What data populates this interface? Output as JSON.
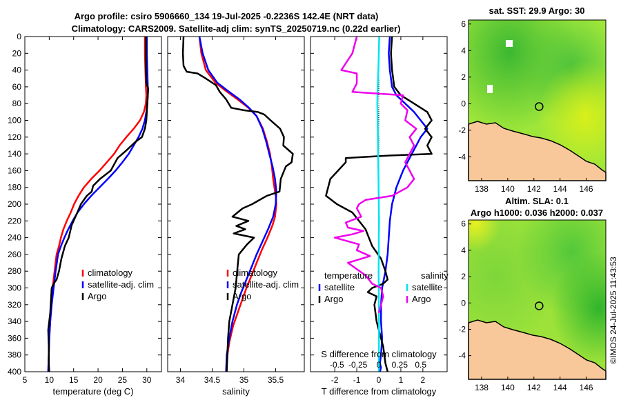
{
  "header": {
    "line1": "Argo profile: csiro 5906660_134 19-Jul-2025 -0.2236S 142.4E (NRT data)",
    "line2": "Climatology: CARS2009. Satellite-adj clim: synTS_20250719.nc (0.22d earlier)"
  },
  "stamp": "©IMOS 24-Jul-2025 11:43:53",
  "colors": {
    "climatology": "#ff0000",
    "satellite": "#0000ff",
    "argo": "#000000",
    "cyan": "#00e5ee",
    "magenta": "#ee00ee",
    "land": "#f8c89a",
    "white_gap": "#ffffff"
  },
  "chart_data": [
    {
      "type": "line",
      "id": "temperature",
      "xlabel": "temperature (deg C)",
      "ylabel": "",
      "xlim": [
        5,
        33
      ],
      "ylim": [
        400,
        0
      ],
      "xticks": [
        5,
        10,
        15,
        20,
        25,
        30
      ],
      "yticks": [
        0,
        20,
        40,
        60,
        80,
        100,
        120,
        140,
        160,
        180,
        200,
        220,
        240,
        260,
        280,
        300,
        320,
        340,
        360,
        380,
        400
      ],
      "legend": [
        "climatology",
        "satellite-adj. clim",
        "Argo"
      ],
      "series": [
        {
          "name": "climatology",
          "color": "#ff0000",
          "width": 2.5,
          "x": [
            29.6,
            29.6,
            29.7,
            29.8,
            29.9,
            29.8,
            29.4,
            28.6,
            27.3,
            25.8,
            24.4,
            23.3,
            21.8,
            20.3,
            18.6,
            17.1,
            16.0,
            15.1,
            14.4,
            13.6,
            12.9,
            12.4,
            12.0,
            11.5,
            11.1,
            10.7,
            10.4,
            10.2,
            10.0,
            9.9,
            9.8
          ],
          "y": [
            0,
            20,
            40,
            60,
            70,
            80,
            90,
            100,
            110,
            120,
            130,
            140,
            150,
            160,
            170,
            180,
            190,
            200,
            210,
            220,
            230,
            240,
            250,
            260,
            280,
            300,
            320,
            340,
            360,
            380,
            400
          ]
        },
        {
          "name": "satellite-adj. clim",
          "color": "#0000ff",
          "width": 2.5,
          "x": [
            30.0,
            30.0,
            30.1,
            30.2,
            30.2,
            30.1,
            29.9,
            29.6,
            29.1,
            28.3,
            27.3,
            26.3,
            25.0,
            23.6,
            22.0,
            20.3,
            18.6,
            17.1,
            15.8,
            14.8,
            13.9,
            13.1,
            12.4,
            11.8,
            11.3,
            10.9,
            10.5,
            10.2,
            10.0,
            9.9,
            9.8
          ],
          "y": [
            0,
            20,
            40,
            60,
            70,
            80,
            90,
            100,
            110,
            120,
            130,
            140,
            150,
            160,
            170,
            180,
            190,
            200,
            210,
            220,
            230,
            240,
            250,
            260,
            280,
            300,
            320,
            340,
            360,
            380,
            400
          ]
        },
        {
          "name": "Argo",
          "color": "#000000",
          "width": 2.5,
          "x": [
            29.8,
            29.8,
            29.8,
            29.9,
            30.3,
            30.2,
            30.1,
            30.0,
            29.9,
            29.6,
            29.0,
            27.6,
            25.8,
            24.0,
            22.6,
            20.4,
            19.0,
            18.7,
            17.7,
            16.5,
            15.6,
            14.6,
            14.0,
            13.2,
            12.5,
            12.0,
            11.5,
            10.9,
            10.5,
            10.4,
            10.2,
            9.8,
            9.9,
            9.9,
            10.0
          ],
          "y": [
            0,
            20,
            40,
            56,
            62,
            70,
            80,
            90,
            100,
            110,
            120,
            126,
            136,
            145,
            160,
            170,
            178,
            185,
            190,
            200,
            212,
            225,
            240,
            250,
            265,
            280,
            290,
            295,
            300,
            310,
            330,
            350,
            370,
            390,
            400
          ]
        }
      ]
    },
    {
      "type": "line",
      "id": "salinity",
      "xlabel": "salinity",
      "xlim": [
        33.8,
        35.95
      ],
      "ylim": [
        400,
        0
      ],
      "xticks": [
        34,
        34.5,
        35,
        35.5
      ],
      "legend": [
        "climatology",
        "satellite-adj. clim",
        "Argo"
      ],
      "series": [
        {
          "name": "climatology",
          "color": "#ff0000",
          "width": 2.5,
          "x": [
            34.3,
            34.33,
            34.4,
            34.55,
            34.72,
            34.9,
            35.07,
            35.2,
            35.3,
            35.36,
            35.41,
            35.44,
            35.46,
            35.48,
            35.5,
            35.51,
            35.49,
            35.45,
            35.37,
            35.28,
            35.2,
            35.12,
            35.04,
            34.97,
            34.9,
            34.83,
            34.77,
            34.73,
            34.72
          ],
          "y": [
            0,
            20,
            40,
            55,
            65,
            75,
            85,
            95,
            110,
            125,
            140,
            155,
            170,
            180,
            190,
            200,
            215,
            225,
            240,
            255,
            270,
            285,
            300,
            315,
            330,
            345,
            365,
            385,
            400
          ]
        },
        {
          "name": "satellite-adj. clim",
          "color": "#0000ff",
          "width": 2.5,
          "x": [
            34.3,
            34.35,
            34.44,
            34.58,
            34.75,
            34.93,
            35.08,
            35.2,
            35.29,
            35.35,
            35.4,
            35.45,
            35.49,
            35.51,
            35.5,
            35.46,
            35.38,
            35.29,
            35.2,
            35.12,
            35.04,
            34.96,
            34.89,
            34.82,
            34.77,
            34.73,
            34.72
          ],
          "y": [
            0,
            20,
            40,
            55,
            65,
            75,
            85,
            95,
            110,
            125,
            140,
            155,
            170,
            185,
            200,
            215,
            230,
            245,
            260,
            275,
            290,
            305,
            320,
            340,
            360,
            380,
            400
          ]
        },
        {
          "name": "Argo",
          "color": "#000000",
          "width": 2.5,
          "x": [
            34.05,
            34.04,
            34.05,
            34.1,
            34.27,
            34.4,
            34.56,
            34.62,
            34.72,
            34.8,
            35.0,
            35.22,
            35.32,
            35.42,
            35.57,
            35.63,
            35.62,
            35.77,
            35.75,
            35.66,
            35.58,
            35.56,
            35.36,
            35.13,
            34.98,
            34.9,
            34.82,
            35.07,
            34.88,
            35.02,
            34.84,
            35.16,
            35.05,
            34.92,
            34.9,
            34.87,
            34.82,
            34.77,
            34.75,
            34.73
          ],
          "y": [
            0,
            20,
            35,
            42,
            44,
            50,
            58,
            66,
            75,
            85,
            88,
            90,
            93,
            100,
            110,
            120,
            130,
            140,
            150,
            155,
            170,
            185,
            190,
            200,
            205,
            210,
            215,
            220,
            226,
            230,
            235,
            240,
            248,
            260,
            275,
            300,
            320,
            340,
            360,
            400
          ]
        }
      ]
    },
    {
      "type": "line",
      "id": "difference",
      "xlabel": "T difference from climatology",
      "xlabel_top": "S difference from climatology",
      "xlim": [
        -3.1,
        3.1
      ],
      "ylim": [
        400,
        0
      ],
      "xticks": [
        -2,
        -1,
        0,
        1,
        2
      ],
      "xticks_top": [
        -0.5,
        -0.25,
        0,
        0.25,
        0.5
      ],
      "xticks_top_labels": [
        "-0.5",
        "-0.25",
        "0",
        "0.25",
        "0.5"
      ],
      "legend_headers": [
        "temperature",
        "salinity"
      ],
      "legend": [
        "satellite",
        "Argo",
        "satellite",
        "Argo"
      ],
      "series": [
        {
          "name": "T satellite",
          "color": "#0000ff",
          "width": 2.5,
          "x": [
            0.5,
            0.45,
            0.5,
            0.6,
            0.8,
            1.2,
            1.6,
            1.9,
            2.2,
            1.9,
            1.5,
            1.1,
            0.8,
            0.6,
            0.5,
            0.45,
            0.4,
            0.3,
            0.15,
            0.1,
            0.1,
            0.15,
            0.1,
            0.05,
            0.1,
            0.05
          ],
          "y": [
            0,
            20,
            40,
            60,
            70,
            80,
            90,
            100,
            110,
            120,
            140,
            160,
            180,
            200,
            220,
            240,
            260,
            280,
            300,
            320,
            340,
            360,
            380,
            390,
            395,
            400
          ]
        },
        {
          "name": "T Argo",
          "color": "#000000",
          "width": 2.5,
          "x": [
            0.6,
            0.55,
            0.6,
            0.7,
            1.0,
            1.6,
            2.2,
            2.4,
            2.1,
            2.4,
            2.2,
            2.4,
            0.5,
            -1.5,
            -1.5,
            -2.2,
            -2.4,
            -1.9,
            -1.2,
            -0.6,
            -0.3,
            0.1,
            0.3,
            0.4,
            0.2,
            -0.3,
            -0.5,
            -0.1,
            -0.2,
            -0.1,
            0,
            0.1,
            0.2,
            0.3,
            0.4
          ],
          "y": [
            0,
            20,
            40,
            60,
            70,
            80,
            90,
            100,
            110,
            120,
            130,
            140,
            142,
            145,
            150,
            170,
            190,
            200,
            210,
            230,
            250,
            265,
            280,
            290,
            295,
            300,
            305,
            310,
            320,
            340,
            350,
            360,
            370,
            390,
            400
          ]
        },
        {
          "name": "S satellite",
          "color": "#00e5ee",
          "width": 2.5,
          "x": [
            0.02,
            0.0,
            -0.02,
            -0.05,
            -0.07,
            -0.05,
            -0.04,
            -0.03,
            -0.02,
            -0.01,
            0,
            0.01,
            0,
            0,
            -0.01,
            0,
            0,
            0.01,
            0.01,
            0,
            0,
            0
          ],
          "y": [
            0,
            20,
            40,
            60,
            80,
            100,
            120,
            140,
            160,
            180,
            200,
            220,
            240,
            260,
            280,
            300,
            320,
            340,
            360,
            380,
            390,
            400
          ]
        },
        {
          "name": "S Argo",
          "color": "#ee00ee",
          "width": 2.5,
          "x": [
            -1.0,
            -1.2,
            -1.7,
            -1.0,
            -1.0,
            -1.2,
            1.1,
            1.0,
            1.3,
            1.2,
            1.7,
            1.4,
            1.6,
            1.4,
            1.2,
            1.4,
            1.6,
            1.3,
            0.6,
            -0.6,
            -0.9,
            -1.0,
            -0.8,
            -1.5,
            -1.4,
            -0.7,
            -1.2,
            -2.0,
            -0.9,
            -1.0,
            -0.4,
            -1.4,
            -0.6,
            -0.3,
            0.1,
            0.2,
            0.1,
            0
          ],
          "y": [
            0,
            20,
            40,
            44,
            56,
            66,
            70,
            80,
            88,
            100,
            110,
            120,
            130,
            140,
            150,
            160,
            170,
            180,
            190,
            195,
            200,
            205,
            215,
            222,
            228,
            232,
            236,
            240,
            248,
            255,
            262,
            270,
            285,
            295,
            300,
            310,
            320,
            330
          ]
        }
      ]
    },
    {
      "type": "heatmap",
      "id": "sst_map",
      "title": "sat. SST: 29.9 Argo: 30",
      "xticks": [
        138,
        140,
        142,
        144,
        146
      ],
      "yticks": [
        -4,
        -2,
        0,
        2,
        4,
        6
      ],
      "xlim": [
        137,
        147.5
      ],
      "ylim": [
        -5.8,
        6.3
      ],
      "marker": {
        "lon": 142.4,
        "lat": -0.22
      }
    },
    {
      "type": "heatmap",
      "id": "sla_map",
      "title": "Altim. SLA: 0.1",
      "subtitle": "Argo h1000: 0.036 h2000: 0.037",
      "xticks": [
        138,
        140,
        142,
        144,
        146
      ],
      "yticks": [
        -4,
        -2,
        0,
        2,
        4,
        6
      ],
      "xlim": [
        137,
        147.5
      ],
      "ylim": [
        -5.8,
        6.3
      ],
      "marker": {
        "lon": 142.4,
        "lat": -0.22
      }
    }
  ]
}
